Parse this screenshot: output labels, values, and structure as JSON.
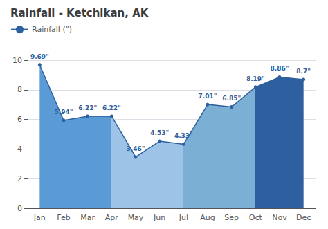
{
  "chart_data": {
    "type": "area",
    "title": "Rainfall - Ketchikan, AK",
    "categories": [
      "Jan",
      "Feb",
      "Mar",
      "Apr",
      "May",
      "Jun",
      "Jul",
      "Aug",
      "Sep",
      "Oct",
      "Nov",
      "Dec"
    ],
    "series": [
      {
        "name": "Rainfall (\")",
        "color": "#2E5F9E",
        "marker": "circle",
        "values": [
          9.69,
          5.94,
          6.22,
          6.22,
          3.46,
          4.53,
          4.33,
          7.01,
          6.85,
          8.19,
          8.86,
          8.7
        ],
        "value_labels": [
          "9.69\"",
          "5.94\"",
          "6.22\"",
          "6.22\"",
          "3.46\"",
          "4.53\"",
          "4.33\"",
          "7.01\"",
          "6.85\"",
          "8.19\"",
          "8.86\"",
          "8.7\""
        ]
      }
    ],
    "colors": [
      "#5B9BD5",
      "#5B9BD5",
      "#5B9BD5",
      "#9DC3E6",
      "#9DC3E6",
      "#9DC3E6",
      "#7BAFD4",
      "#7BAFD4",
      "#7BAFD4",
      "#2E5F9E",
      "#2E5F9E",
      "#2E5F9E"
    ],
    "ylim": [
      0,
      10.8
    ],
    "yticks": [
      0,
      2,
      4,
      6,
      8,
      10
    ],
    "grid": true,
    "data_labels": true,
    "legend": "upper left"
  }
}
